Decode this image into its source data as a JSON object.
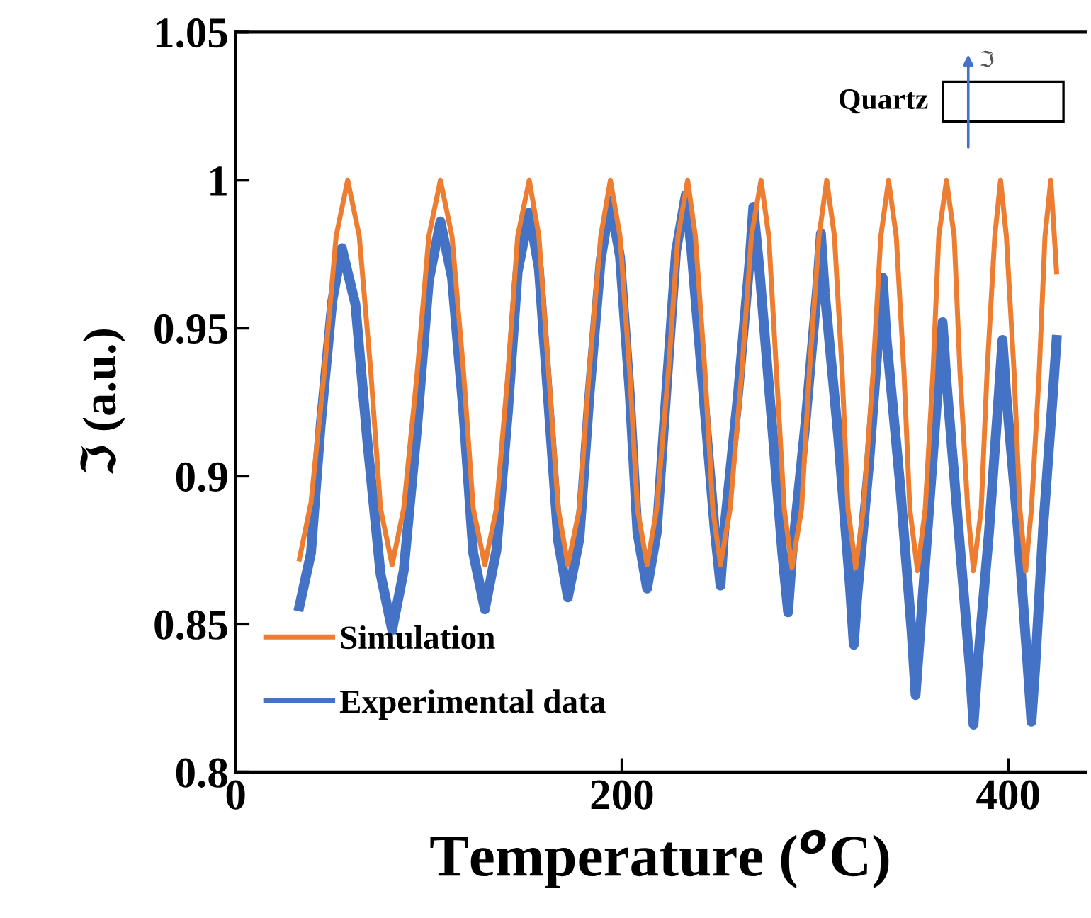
{
  "chart_data": {
    "type": "line",
    "xlabel": "Temperature ($^{o}$C)",
    "ylabel": "ℑ (a.u.)",
    "xlim": [
      0,
      440
    ],
    "ylim": [
      0.8,
      1.05
    ],
    "xticks": [
      0,
      200,
      400
    ],
    "yticks": [
      0.8,
      0.85,
      0.9,
      0.95,
      1,
      1.05
    ],
    "grid": false,
    "legend": "bottom left",
    "marker": "none",
    "line_style": "solid",
    "annotations": [
      "Quartz",
      "ℑ"
    ],
    "series": [
      {
        "name": "Simulation",
        "color": "#ed7d31",
        "x": [
          33,
          39,
          46,
          52,
          58,
          64,
          70,
          75,
          81,
          87,
          94,
          100,
          106,
          112,
          118,
          123,
          129,
          135,
          141,
          146,
          152,
          157,
          162,
          167,
          172,
          178,
          183,
          189,
          194,
          199,
          204,
          208,
          213,
          218,
          224,
          229,
          234,
          238,
          243,
          247,
          251,
          256,
          262,
          267,
          272,
          276,
          280,
          284,
          288,
          293,
          297,
          302,
          306,
          310,
          314,
          317,
          321,
          325,
          330,
          334,
          338,
          342,
          346,
          349,
          353,
          357,
          361,
          364,
          368,
          372,
          375,
          379,
          382,
          386,
          389,
          393,
          396,
          399,
          403,
          406,
          409,
          412,
          416,
          419,
          422,
          425
        ],
        "values": [
          0.872,
          0.891,
          0.936,
          0.981,
          1.0,
          0.981,
          0.935,
          0.889,
          0.87,
          0.889,
          0.935,
          0.981,
          1.0,
          0.981,
          0.935,
          0.889,
          0.87,
          0.889,
          0.935,
          0.981,
          1.0,
          0.981,
          0.935,
          0.889,
          0.87,
          0.889,
          0.935,
          0.981,
          1.0,
          0.981,
          0.935,
          0.889,
          0.87,
          0.889,
          0.935,
          0.981,
          1.0,
          0.981,
          0.935,
          0.889,
          0.87,
          0.889,
          0.935,
          0.981,
          1.0,
          0.981,
          0.935,
          0.889,
          0.869,
          0.889,
          0.935,
          0.981,
          1.0,
          0.981,
          0.935,
          0.889,
          0.869,
          0.889,
          0.935,
          0.981,
          1.0,
          0.981,
          0.935,
          0.889,
          0.868,
          0.889,
          0.935,
          0.981,
          1.0,
          0.981,
          0.935,
          0.889,
          0.868,
          0.889,
          0.935,
          0.981,
          1.0,
          0.981,
          0.935,
          0.889,
          0.868,
          0.889,
          0.935,
          0.981,
          1.0,
          0.969
        ]
      },
      {
        "name": "Experimental data",
        "color": "#4472c4",
        "x": [
          33,
          39,
          44,
          50,
          55,
          62,
          68,
          75,
          81,
          87,
          94,
          100,
          106,
          112,
          118,
          123,
          129,
          135,
          141,
          146,
          152,
          157,
          162,
          167,
          172,
          178,
          183,
          189,
          194,
          199,
          204,
          208,
          213,
          218,
          223,
          228,
          233,
          236,
          242,
          248,
          251,
          253,
          260,
          266,
          268,
          271,
          277,
          283,
          286,
          288,
          295,
          301,
          303,
          305,
          312,
          318,
          320,
          322,
          328,
          333,
          335,
          337,
          344,
          350,
          352,
          354,
          359,
          364,
          366,
          368,
          374,
          380,
          382,
          384,
          390,
          395,
          397,
          399,
          405,
          410,
          412,
          414,
          418,
          423,
          425
        ],
        "values": [
          0.856,
          0.874,
          0.917,
          0.959,
          0.977,
          0.958,
          0.913,
          0.867,
          0.848,
          0.868,
          0.917,
          0.966,
          0.986,
          0.967,
          0.921,
          0.874,
          0.855,
          0.875,
          0.922,
          0.969,
          0.989,
          0.97,
          0.924,
          0.878,
          0.859,
          0.879,
          0.926,
          0.973,
          0.993,
          0.974,
          0.928,
          0.881,
          0.862,
          0.881,
          0.929,
          0.976,
          0.995,
          0.976,
          0.929,
          0.882,
          0.863,
          0.882,
          0.927,
          0.972,
          0.991,
          0.971,
          0.923,
          0.874,
          0.854,
          0.873,
          0.918,
          0.963,
          0.982,
          0.962,
          0.913,
          0.863,
          0.843,
          0.861,
          0.905,
          0.949,
          0.967,
          0.946,
          0.897,
          0.847,
          0.826,
          0.844,
          0.889,
          0.934,
          0.952,
          0.932,
          0.884,
          0.836,
          0.816,
          0.835,
          0.881,
          0.927,
          0.946,
          0.927,
          0.882,
          0.836,
          0.817,
          0.836,
          0.882,
          0.927,
          0.946
        ]
      }
    ]
  }
}
